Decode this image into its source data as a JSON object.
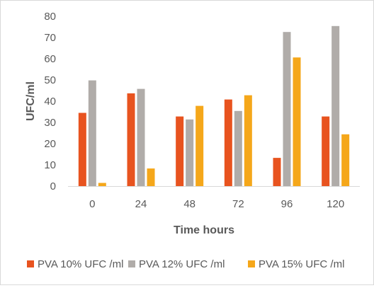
{
  "chart_data": {
    "type": "bar",
    "title": "",
    "xlabel": "Time hours",
    "ylabel": "UFC/ml",
    "categories": [
      "0",
      "24",
      "48",
      "72",
      "96",
      "120"
    ],
    "series": [
      {
        "name": "PVA 10% UFC /ml",
        "color": "#e8531f",
        "values": [
          34.5,
          43.7,
          32.8,
          40.8,
          13.3,
          32.8
        ]
      },
      {
        "name": "PVA 12% UFC /ml",
        "color": "#b0aca9",
        "values": [
          49.8,
          45.8,
          31.4,
          35.4,
          72.6,
          75.4
        ]
      },
      {
        "name": "PVA 15% UFC /ml",
        "color": "#f5a71a",
        "values": [
          1.5,
          8.3,
          37.8,
          42.8,
          60.6,
          24.4
        ]
      }
    ],
    "ylim": [
      0,
      80
    ],
    "yticks": [
      "0",
      "10",
      "20",
      "30",
      "40",
      "50",
      "60",
      "70",
      "80"
    ],
    "grid": false,
    "legend": "bottom"
  }
}
